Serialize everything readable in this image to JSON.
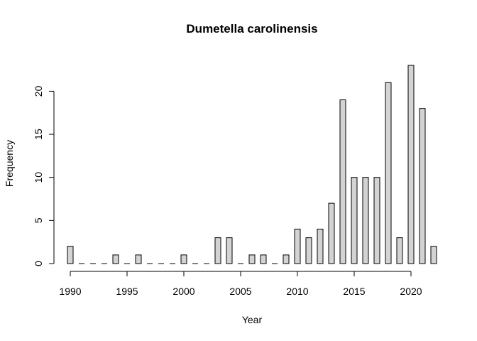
{
  "chart_data": {
    "type": "bar",
    "title": "Dumetella carolinensis",
    "xlabel": "Year",
    "ylabel": "Frequency",
    "x": [
      1990,
      1991,
      1992,
      1993,
      1994,
      1995,
      1996,
      1997,
      1998,
      1999,
      2000,
      2001,
      2002,
      2003,
      2004,
      2005,
      2006,
      2007,
      2008,
      2009,
      2010,
      2011,
      2012,
      2013,
      2014,
      2015,
      2016,
      2017,
      2018,
      2019,
      2020,
      2021,
      2022
    ],
    "values": [
      2,
      0,
      0,
      0,
      1,
      0,
      1,
      0,
      0,
      0,
      1,
      0,
      0,
      3,
      3,
      0,
      1,
      1,
      0,
      1,
      4,
      3,
      4,
      7,
      19,
      10,
      10,
      10,
      21,
      3,
      23,
      18,
      2
    ],
    "xlim": [
      1990,
      2022
    ],
    "ylim": [
      0,
      23
    ],
    "x_ticks": [
      1990,
      1995,
      2000,
      2005,
      2010,
      2015,
      2020
    ],
    "y_ticks": [
      0,
      5,
      10,
      15,
      20
    ],
    "grid": false,
    "bar_color": "#d3d3d3",
    "edge_color": "#000000"
  }
}
